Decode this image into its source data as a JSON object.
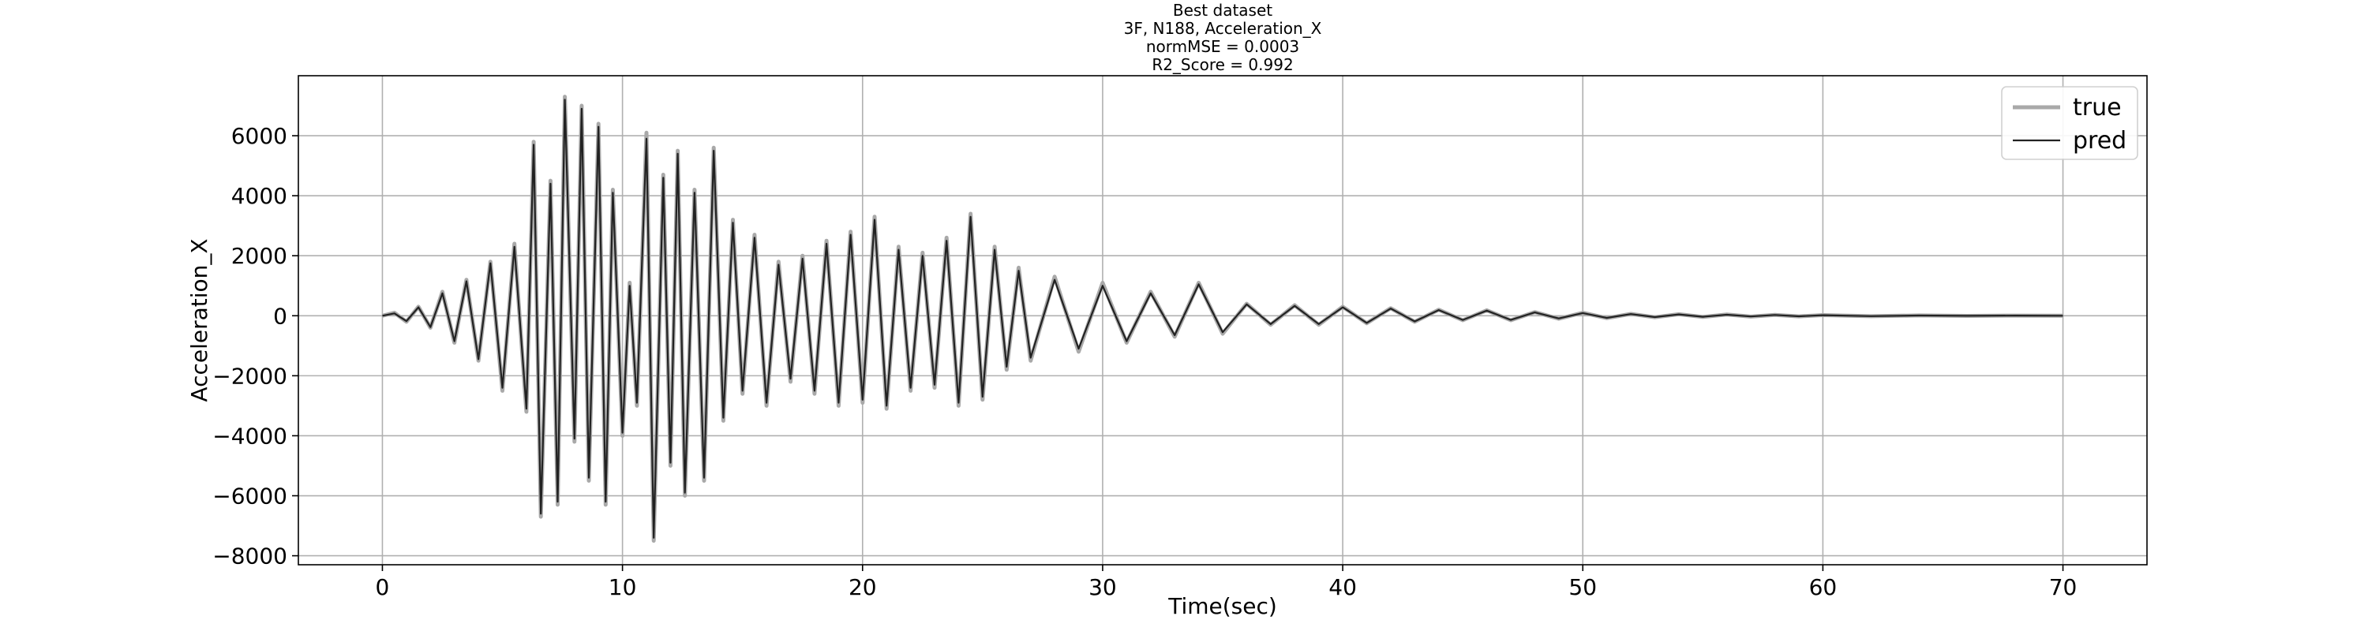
{
  "chart_data": {
    "type": "line",
    "title": [
      "Best dataset",
      "3F, N188, Acceleration_X",
      "normMSE = 0.0003",
      "R2_Score = 0.992"
    ],
    "xlabel": "Time(sec)",
    "ylabel": "Acceleration_X",
    "xlim": [
      -3.5,
      73.5
    ],
    "ylim": [
      -8300,
      8000
    ],
    "xticks": [
      0,
      10,
      20,
      30,
      40,
      50,
      60,
      70
    ],
    "xtick_labels": [
      "0",
      "10",
      "20",
      "30",
      "40",
      "50",
      "60",
      "70"
    ],
    "yticks": [
      -8000,
      -6000,
      -4000,
      -2000,
      0,
      2000,
      4000,
      6000
    ],
    "ytick_labels": [
      "−8000",
      "−6000",
      "−4000",
      "−2000",
      "0",
      "2000",
      "4000",
      "6000"
    ],
    "grid": true,
    "legend_position": "top-right",
    "series": [
      {
        "name": "true",
        "color": "#a9a9a9",
        "x": [
          0,
          0.5,
          1,
          1.5,
          2,
          2.5,
          3,
          3.5,
          4,
          4.5,
          5,
          5.5,
          6,
          6.3,
          6.6,
          7,
          7.3,
          7.6,
          8,
          8.3,
          8.6,
          9,
          9.3,
          9.6,
          10,
          10.3,
          10.6,
          11,
          11.3,
          11.7,
          12,
          12.3,
          12.6,
          13,
          13.4,
          13.8,
          14.2,
          14.6,
          15,
          15.5,
          16,
          16.5,
          17,
          17.5,
          18,
          18.5,
          19,
          19.5,
          20,
          20.5,
          21,
          21.5,
          22,
          22.5,
          23,
          23.5,
          24,
          24.5,
          25,
          25.5,
          26,
          26.5,
          27,
          28,
          29,
          30,
          31,
          32,
          33,
          34,
          35,
          36,
          37,
          38,
          39,
          40,
          41,
          42,
          43,
          44,
          45,
          46,
          47,
          48,
          49,
          50,
          51,
          52,
          53,
          54,
          55,
          56,
          57,
          58,
          59,
          60,
          62,
          64,
          66,
          68,
          70
        ],
        "y": [
          0,
          100,
          -200,
          300,
          -400,
          800,
          -900,
          1200,
          -1500,
          1800,
          -2500,
          2400,
          -3200,
          5800,
          -6700,
          4500,
          -6300,
          7300,
          -4200,
          7000,
          -5500,
          6400,
          -6300,
          4200,
          -4000,
          1100,
          -3000,
          6100,
          -7500,
          4700,
          -5000,
          5500,
          -6000,
          4200,
          -5500,
          5600,
          -3500,
          3200,
          -2600,
          2700,
          -3000,
          1800,
          -2200,
          2000,
          -2600,
          2500,
          -3000,
          2800,
          -2900,
          3300,
          -3100,
          2300,
          -2500,
          2100,
          -2400,
          2600,
          -3000,
          3400,
          -2800,
          2300,
          -1800,
          1600,
          -1500,
          1300,
          -1200,
          1100,
          -900,
          800,
          -700,
          1100,
          -600,
          400,
          -300,
          350,
          -300,
          300,
          -250,
          250,
          -200,
          200,
          -150,
          180,
          -150,
          120,
          -100,
          100,
          -80,
          60,
          -50,
          50,
          -40,
          40,
          -30,
          30,
          -20,
          20,
          -15,
          10,
          -5,
          5,
          0
        ]
      },
      {
        "name": "pred",
        "color": "#222222",
        "x": [
          0,
          0.5,
          1,
          1.5,
          2,
          2.5,
          3,
          3.5,
          4,
          4.5,
          5,
          5.5,
          6,
          6.3,
          6.6,
          7,
          7.3,
          7.6,
          8,
          8.3,
          8.6,
          9,
          9.3,
          9.6,
          10,
          10.3,
          10.6,
          11,
          11.3,
          11.7,
          12,
          12.3,
          12.6,
          13,
          13.4,
          13.8,
          14.2,
          14.6,
          15,
          15.5,
          16,
          16.5,
          17,
          17.5,
          18,
          18.5,
          19,
          19.5,
          20,
          20.5,
          21,
          21.5,
          22,
          22.5,
          23,
          23.5,
          24,
          24.5,
          25,
          25.5,
          26,
          26.5,
          27,
          28,
          29,
          30,
          31,
          32,
          33,
          34,
          35,
          36,
          37,
          38,
          39,
          40,
          41,
          42,
          43,
          44,
          45,
          46,
          47,
          48,
          49,
          50,
          51,
          52,
          53,
          54,
          55,
          56,
          57,
          58,
          59,
          60,
          62,
          64,
          66,
          68,
          70
        ],
        "y": [
          0,
          80,
          -180,
          280,
          -380,
          750,
          -850,
          1150,
          -1450,
          1750,
          -2400,
          2300,
          -3100,
          5700,
          -6600,
          4400,
          -6200,
          7200,
          -4100,
          6900,
          -5400,
          6300,
          -6200,
          4100,
          -3900,
          1000,
          -2900,
          5900,
          -7400,
          4600,
          -4900,
          5400,
          -5900,
          4100,
          -5400,
          5500,
          -3400,
          3100,
          -2500,
          2600,
          -2900,
          1700,
          -2100,
          1900,
          -2500,
          2400,
          -2900,
          2700,
          -2800,
          3200,
          -3000,
          2200,
          -2400,
          2000,
          -2300,
          2500,
          -2900,
          3300,
          -2700,
          2200,
          -1700,
          1500,
          -1400,
          1200,
          -1100,
          1000,
          -850,
          750,
          -650,
          1050,
          -550,
          380,
          -280,
          330,
          -280,
          280,
          -240,
          240,
          -190,
          190,
          -140,
          170,
          -140,
          110,
          -90,
          90,
          -70,
          55,
          -45,
          45,
          -35,
          35,
          -25,
          25,
          -18,
          18,
          -12,
          8,
          -4,
          4,
          0
        ]
      }
    ]
  }
}
